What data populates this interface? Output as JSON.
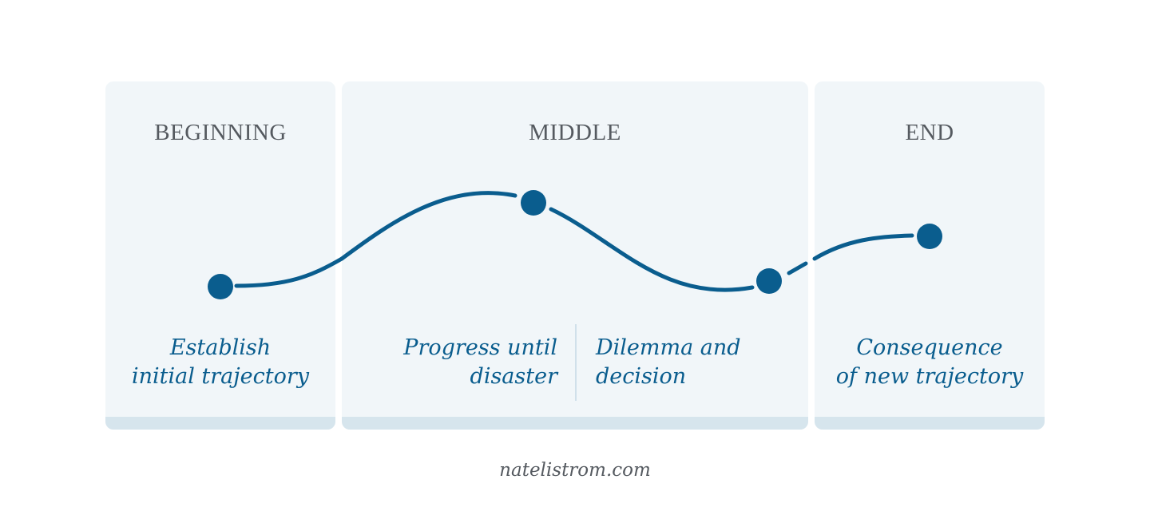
{
  "sections": {
    "beginning": {
      "heading": "BEGINNING",
      "caption": [
        "Establish",
        "initial trajectory"
      ]
    },
    "middle": {
      "heading": "MIDDLE",
      "caption_left": [
        "Progress until",
        "disaster"
      ],
      "caption_right": [
        "Dilemma and",
        "decision"
      ]
    },
    "end": {
      "heading": "END",
      "caption": [
        "Consequence",
        "of new trajectory"
      ]
    }
  },
  "footer": {
    "credit": "natelistrom.com"
  },
  "colors": {
    "accent": "#0a5d8e",
    "panel_bg": "#f1f6f9",
    "panel_base": "#d6e5ed",
    "heading_text": "#555a60"
  }
}
